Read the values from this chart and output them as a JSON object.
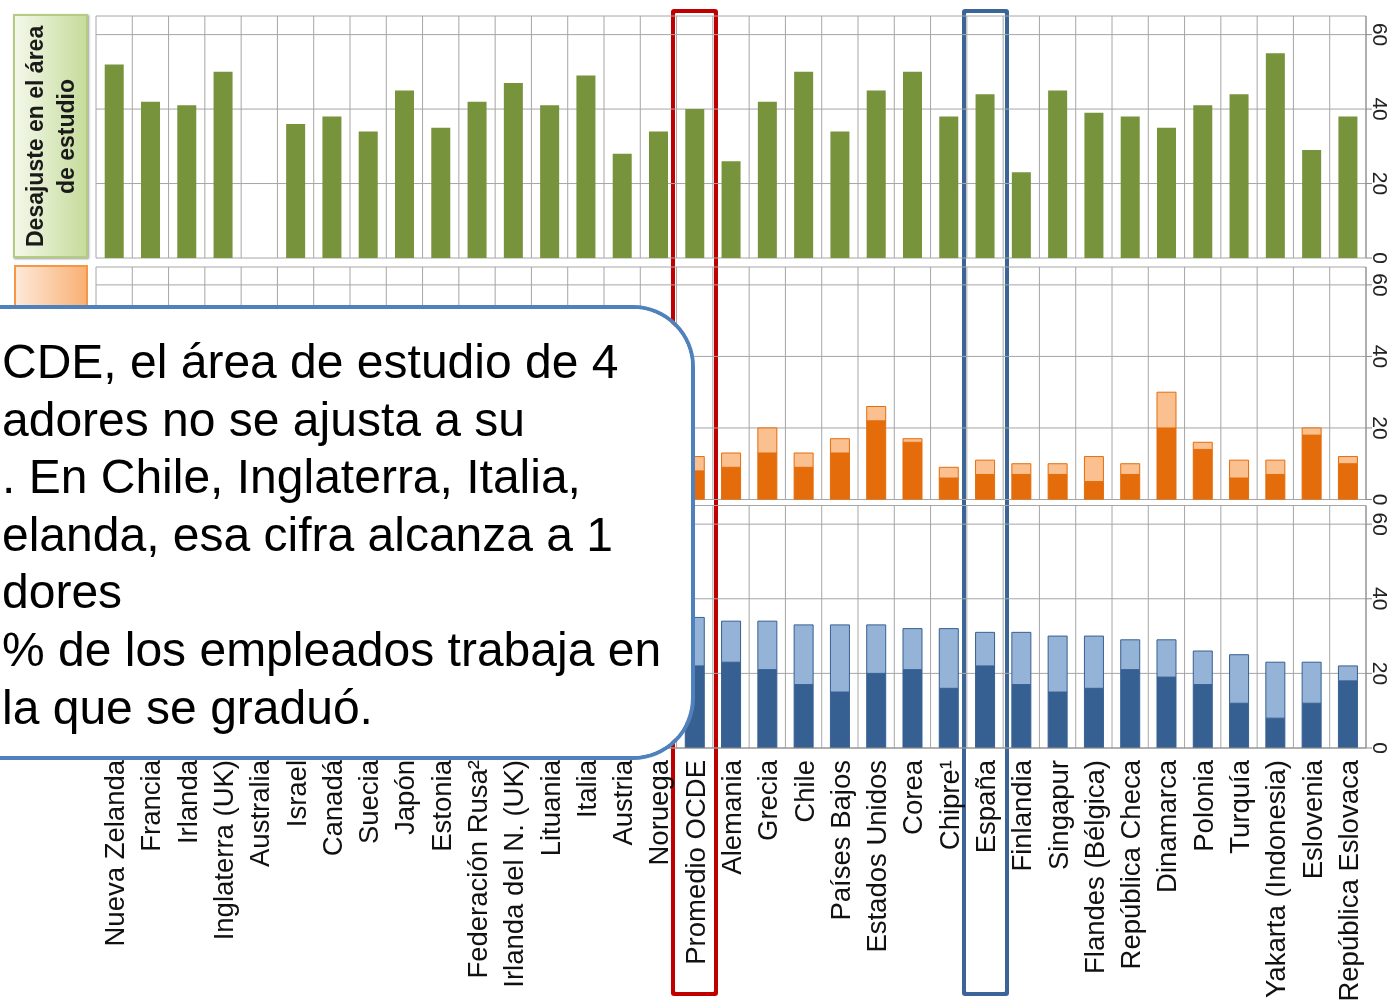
{
  "chart_data": [
    {
      "type": "bar",
      "ylabel": "Desajuste en el área de estudio",
      "categories": [
        "Nueva Zelanda",
        "Francia",
        "Irlanda",
        "Inglaterra (UK)",
        "Australia",
        "Israel",
        "Canadá",
        "Suecia",
        "Japón",
        "Estonia",
        "Federación Rusa²",
        "Irlanda del N. (UK)",
        "Lituania",
        "Italia",
        "Austria",
        "Noruega",
        "Promedio OCDE",
        "Alemania",
        "Grecia",
        "Chile",
        "Países Bajos",
        "Estados Unidos",
        "Corea",
        "Chipre¹",
        "España",
        "Finlandia",
        "Singapur",
        "Flandes (Bélgica)",
        "República Checa",
        "Dinamarca",
        "Polonia",
        "Turquía",
        "Yakarta (Indonesia)",
        "Eslovenia",
        "República Eslovaca"
      ],
      "values": [
        52,
        42,
        41,
        50,
        null,
        36,
        38,
        34,
        45,
        35,
        42,
        47,
        41,
        49,
        28,
        34,
        40,
        26,
        42,
        50,
        34,
        45,
        50,
        38,
        44,
        23,
        45,
        39,
        38,
        35,
        41,
        44,
        55,
        29,
        38
      ],
      "color": "#77933c",
      "ylim": [
        0,
        65
      ],
      "yticks": [
        0,
        20,
        40,
        60
      ],
      "grid": true,
      "tick_labels": "y"
    },
    {
      "type": "bar",
      "stacked": true,
      "categories": [
        "Nueva Zelanda",
        "Francia",
        "Irlanda",
        "Inglaterra (UK)",
        "Australia",
        "Israel",
        "Canadá",
        "Suecia",
        "Japón",
        "Estonia",
        "Federación Rusa²",
        "Irlanda del N. (UK)",
        "Lituania",
        "Italia",
        "Austria",
        "Noruega",
        "Promedio OCDE",
        "Alemania",
        "Grecia",
        "Chile",
        "Países Bajos",
        "Estados Unidos",
        "Corea",
        "Chipre¹",
        "España",
        "Finlandia",
        "Singapur",
        "Flandes (Bélgica)",
        "República Checa",
        "Dinamarca",
        "Polonia",
        "Turquía",
        "Yakarta (Indonesia)",
        "Eslovenia",
        "República Eslovaca"
      ],
      "series": [
        {
          "color": "#e46c0a",
          "values": [
            null,
            null,
            null,
            null,
            null,
            null,
            null,
            null,
            null,
            null,
            null,
            null,
            null,
            null,
            null,
            null,
            8,
            9,
            13,
            9,
            13,
            22,
            16,
            6,
            7,
            7,
            7,
            5,
            7,
            20,
            14,
            6,
            7,
            18,
            10
          ]
        },
        {
          "color": "#fac090",
          "values": [
            null,
            null,
            null,
            null,
            null,
            null,
            null,
            null,
            null,
            null,
            null,
            null,
            null,
            null,
            null,
            null,
            4,
            4,
            7,
            4,
            4,
            4,
            1,
            3,
            4,
            3,
            3,
            7,
            3,
            10,
            2,
            5,
            4,
            2,
            2
          ]
        }
      ],
      "ylim": [
        0,
        65
      ],
      "yticks": [
        0,
        20,
        40,
        60
      ],
      "grid": true,
      "tick_labels": "y",
      "annotations": [
        "CDE, el área de estudio de 4",
        "adores no se ajusta a su",
        ". En Chile, Inglaterra, Italia,",
        "elanda, esa cifra alcanza a 1",
        "dores",
        "% de los empleados trabaja en",
        "la que se graduó."
      ]
    },
    {
      "type": "bar",
      "stacked": true,
      "categories": [
        "Nueva Zelanda",
        "Francia",
        "Irlanda",
        "Inglaterra (UK)",
        "Australia",
        "Israel",
        "Canadá",
        "Suecia",
        "Japón",
        "Estonia",
        "Federación Rusa²",
        "Irlanda del N. (UK)",
        "Lituania",
        "Italia",
        "Austria",
        "Noruega",
        "Promedio OCDE",
        "Alemania",
        "Grecia",
        "Chile",
        "Países Bajos",
        "Estados Unidos",
        "Corea",
        "Chipre¹",
        "España",
        "Finlandia",
        "Singapur",
        "Flandes (Bélgica)",
        "República Checa",
        "Dinamarca",
        "Polonia",
        "Turquía",
        "Yakarta (Indonesia)",
        "Eslovenia",
        "República Eslovaca"
      ],
      "series": [
        {
          "color": "#376092",
          "values": [
            null,
            null,
            null,
            null,
            null,
            null,
            null,
            null,
            null,
            null,
            null,
            null,
            null,
            null,
            null,
            null,
            22,
            23,
            21,
            17,
            15,
            20,
            21,
            16,
            22,
            17,
            15,
            16,
            21,
            19,
            17,
            12,
            8,
            12,
            18
          ]
        },
        {
          "color": "#95b3d7",
          "values": [
            null,
            null,
            null,
            null,
            null,
            null,
            null,
            null,
            null,
            null,
            null,
            null,
            null,
            null,
            null,
            null,
            13,
            11,
            13,
            16,
            18,
            13,
            11,
            16,
            9,
            14,
            15,
            14,
            8,
            10,
            9,
            13,
            15,
            11,
            4
          ]
        }
      ],
      "ylim": [
        0,
        65
      ],
      "yticks": [
        0,
        20,
        40,
        60
      ],
      "grid": true
    }
  ]
}
